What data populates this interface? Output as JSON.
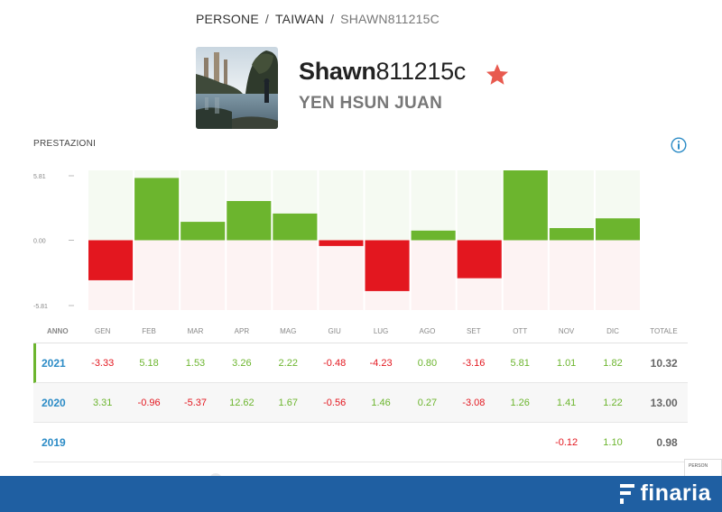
{
  "breadcrumb": {
    "items": [
      "PERSONE",
      "TAIWAN",
      "SHAWN811215C"
    ],
    "separator": "/"
  },
  "profile": {
    "username_prefix": "Shawn",
    "username_suffix": "811215c",
    "full_name": "YEN HSUN JUAN",
    "star_color": "#e85a4f"
  },
  "performance": {
    "title": "PRESTAZIONI",
    "info_icon": "info-icon"
  },
  "chart_data": {
    "type": "bar",
    "categories": [
      "GEN",
      "FEB",
      "MAR",
      "APR",
      "MAG",
      "GIU",
      "LUG",
      "AGO",
      "SET",
      "OTT",
      "NOV",
      "DIC"
    ],
    "values": [
      -3.33,
      5.18,
      1.53,
      3.26,
      2.22,
      -0.48,
      -4.23,
      0.8,
      -3.16,
      5.81,
      1.01,
      1.82
    ],
    "yticks": [
      "5.81",
      "0.00",
      "-5.81"
    ],
    "ylim": [
      -5.81,
      5.81
    ],
    "positive_color": "#6cb52e",
    "negative_color": "#e3171f"
  },
  "table": {
    "headers": {
      "year": "ANNO",
      "months": [
        "GEN",
        "FEB",
        "MAR",
        "APR",
        "MAG",
        "GIU",
        "LUG",
        "AGO",
        "SET",
        "OTT",
        "NOV",
        "DIC"
      ],
      "total": "TOTALE"
    },
    "rows": [
      {
        "year": "2021",
        "months": [
          "-3.33",
          "5.18",
          "1.53",
          "3.26",
          "2.22",
          "-0.48",
          "-4.23",
          "0.80",
          "-3.16",
          "5.81",
          "1.01",
          "1.82"
        ],
        "total": "10.32"
      },
      {
        "year": "2020",
        "months": [
          "3.31",
          "-0.96",
          "-5.37",
          "12.62",
          "1.67",
          "-0.56",
          "1.46",
          "0.27",
          "-3.08",
          "1.26",
          "1.41",
          "1.22"
        ],
        "total": "13.00"
      },
      {
        "year": "2019",
        "months": [
          "",
          "",
          "",
          "",
          "",
          "",
          "",
          "",
          "",
          "",
          "-0.12",
          "1.10"
        ],
        "total": "0.98"
      }
    ]
  },
  "footer": {
    "brand": "finaria",
    "background": "#1f5fa2"
  },
  "side_badge": "PERSON"
}
